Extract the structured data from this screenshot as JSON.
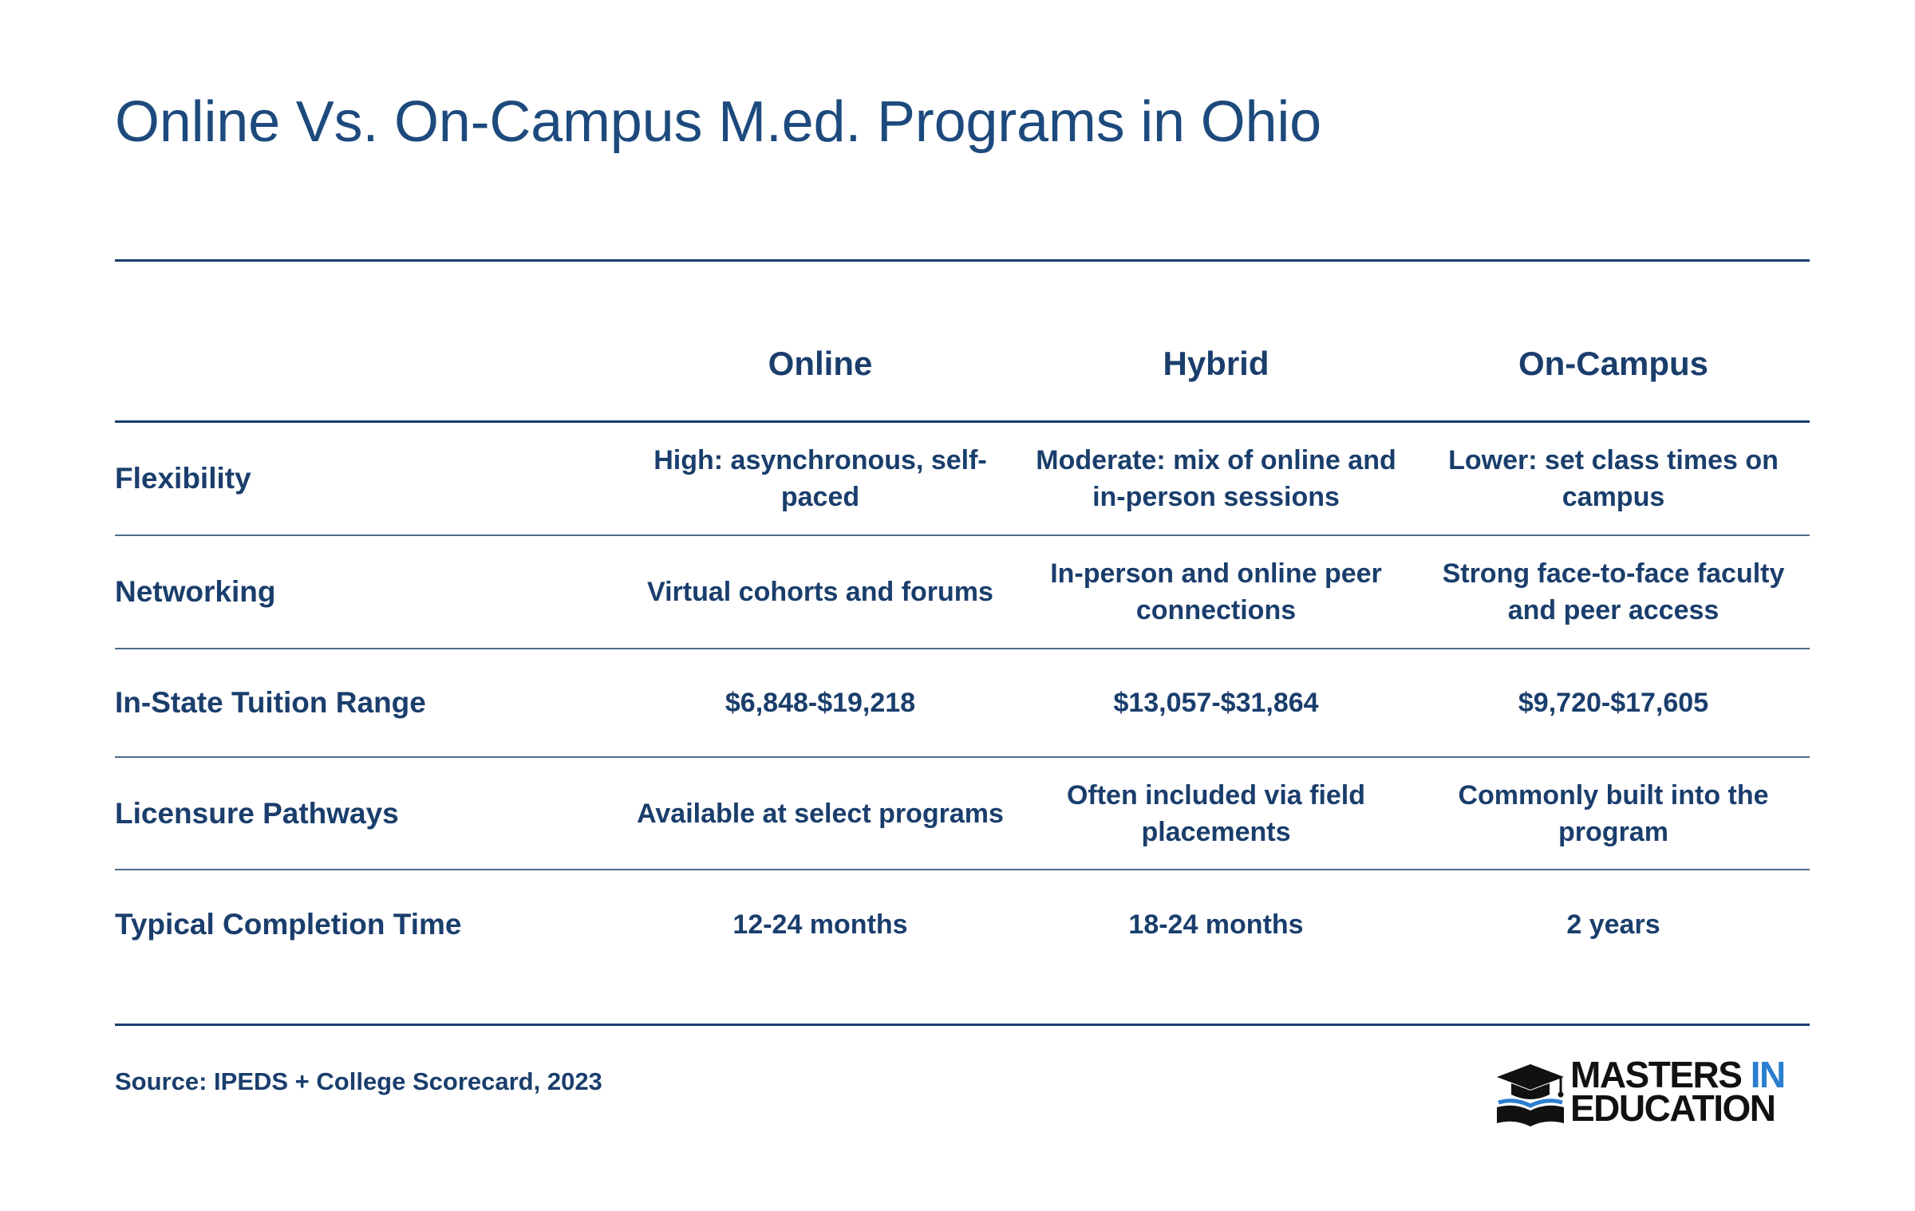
{
  "title": "Online Vs. On-Campus M.ed. Programs in Ohio",
  "table": {
    "columns": [
      "Online",
      "Hybrid",
      "On-Campus"
    ],
    "rows": [
      {
        "label": "Flexibility",
        "cells": [
          "High: asynchronous, self-paced",
          "Moderate: mix of online and in-person sessions",
          "Lower: set class times on campus"
        ]
      },
      {
        "label": "Networking",
        "cells": [
          "Virtual cohorts and forums",
          "In-person and online peer connections",
          "Strong face-to-face faculty and peer access"
        ]
      },
      {
        "label": "In-State Tuition Range",
        "cells": [
          "$6,848-$19,218",
          "$13,057-$31,864",
          "$9,720-$17,605"
        ]
      },
      {
        "label": "Licensure Pathways",
        "cells": [
          "Available at select programs",
          "Often included via field placements",
          "Commonly built into the program"
        ]
      },
      {
        "label": "Typical Completion Time",
        "cells": [
          "12-24 months",
          "18-24 months",
          "2 years"
        ]
      }
    ]
  },
  "source": "Source: IPEDS + College Scorecard, 2023",
  "logo": {
    "line1_a": "MASTERS",
    "line1_b": "IN",
    "line2": "EDUCATION",
    "icon": "graduation-cap-book-icon",
    "accent_color": "#2b7fd0",
    "text_color": "#111111"
  },
  "colors": {
    "primary": "#1a3e6c",
    "title": "#1d4a7d",
    "background": "#ffffff"
  }
}
